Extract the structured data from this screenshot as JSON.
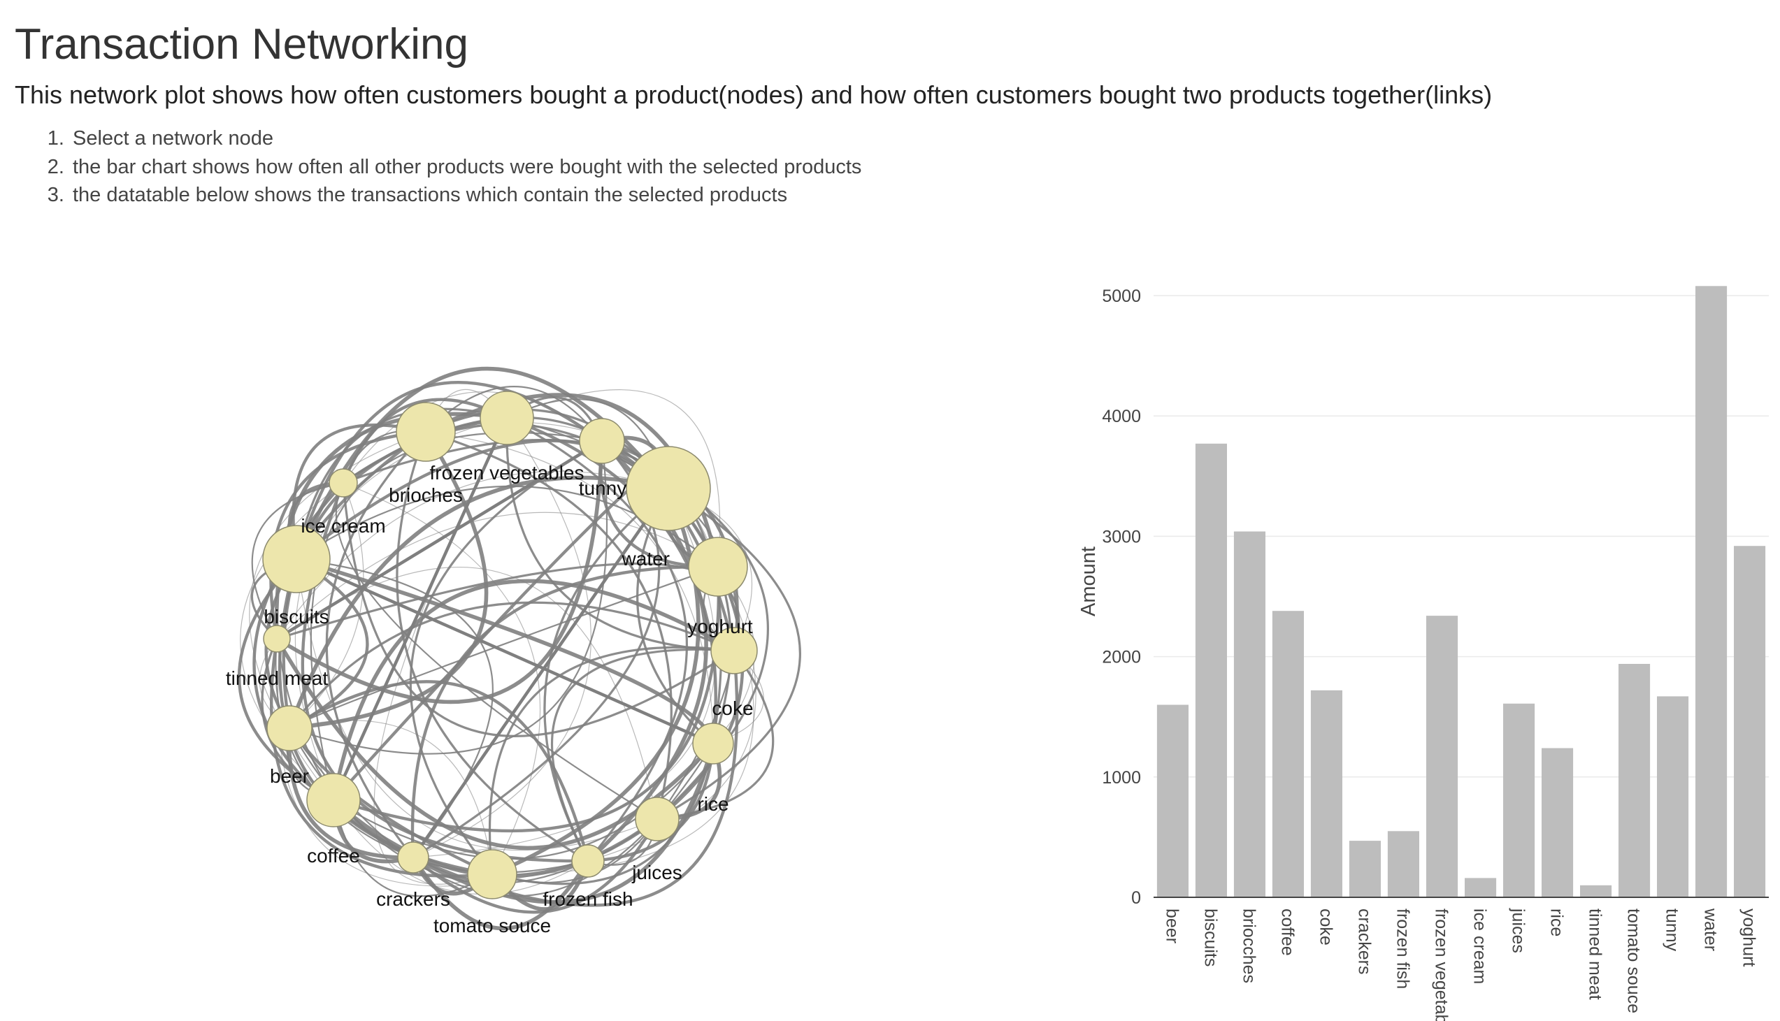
{
  "header": {
    "title": "Transaction Networking",
    "subtitle": "This network plot shows how often customers bought a product(nodes) and how often customers bought two products together(links)",
    "steps": [
      "Select a network node",
      "the bar chart shows how often all other products were bought with the selected products",
      "the datatable below shows the transactions which contain the selected products"
    ]
  },
  "colors": {
    "node_fill": "#EDE6AC",
    "node_stroke": "#8C8A6E",
    "link": "#7F7F7F",
    "bar": "#BDBDBD",
    "grid": "#EAEAEA"
  },
  "network": {
    "nodes": [
      "frozen vegetables",
      "tunny",
      "water",
      "yoghurt",
      "coke",
      "rice",
      "juices",
      "frozen fish",
      "tomato souce",
      "crackers",
      "coffee",
      "beer",
      "tinned meat",
      "biscuits",
      "ice cream",
      "brioches"
    ]
  },
  "chart_data": {
    "type": "bar",
    "categories": [
      "beer",
      "biscuits",
      "briocches",
      "coffee",
      "coke",
      "crackers",
      "frozen fish",
      "frozen vegetables",
      "ice cream",
      "juices",
      "rice",
      "tinned meat",
      "tomato souce",
      "tunny",
      "water",
      "yoghurt"
    ],
    "values": [
      1600,
      3770,
      3040,
      2380,
      1720,
      470,
      550,
      2340,
      160,
      1610,
      1240,
      100,
      1940,
      1670,
      5080,
      2920
    ],
    "ylabel": "Amount",
    "xlabel": "",
    "ylim": [
      0,
      5250
    ],
    "yticks": [
      0,
      1000,
      2000,
      3000,
      4000,
      5000
    ],
    "grid": true
  }
}
